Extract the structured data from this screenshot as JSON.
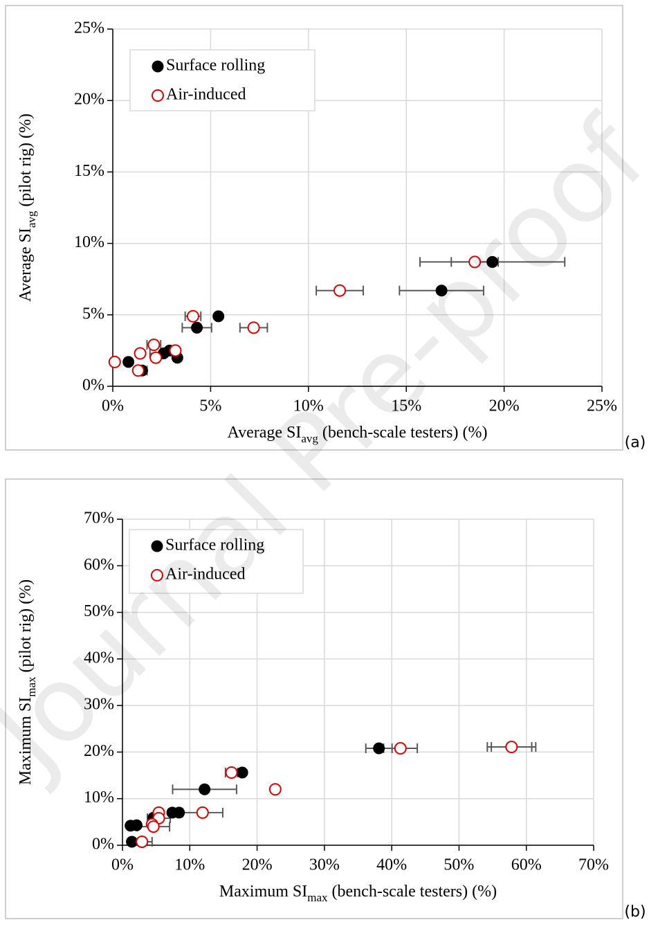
{
  "watermark": "Journal Pre-proof",
  "chart_data": [
    {
      "type": "scatter",
      "panel_label": "(a)",
      "xlabel": {
        "text": "Average SI",
        "sub": "avg",
        "rest": " (bench-scale testers) (%)"
      },
      "ylabel": {
        "text": "Average SI",
        "sub": "avg",
        "rest": " (pilot rig) (%)"
      },
      "xlim": [
        0,
        25
      ],
      "ylim": [
        0,
        25
      ],
      "xticks": [
        {
          "value": 0,
          "label": "0%"
        },
        {
          "value": 5,
          "label": "5%"
        },
        {
          "value": 10,
          "label": "10%"
        },
        {
          "value": 15,
          "label": "15%"
        },
        {
          "value": 20,
          "label": "20%"
        },
        {
          "value": 25,
          "label": "25%"
        }
      ],
      "yticks": [
        {
          "value": 0,
          "label": "0%"
        },
        {
          "value": 5,
          "label": "5%"
        },
        {
          "value": 10,
          "label": "10%"
        },
        {
          "value": 15,
          "label": "15%"
        },
        {
          "value": 20,
          "label": "20%"
        },
        {
          "value": 25,
          "label": "25%"
        }
      ],
      "grid": true,
      "legend": "upper left",
      "series": [
        {
          "name": "Surface rolling",
          "color": "#000000",
          "marker": "filled",
          "x": [
            19.4,
            16.8,
            5.4,
            4.3,
            2.9,
            2.6,
            3.3,
            0.8,
            1.5
          ],
          "values": [
            8.7,
            6.7,
            4.9,
            4.1,
            2.5,
            2.3,
            2.0,
            1.7,
            1.1
          ],
          "xerr": [
            3.7,
            2.15,
            null,
            0.75,
            null,
            0.7,
            null,
            null,
            0.25
          ]
        },
        {
          "name": "Air-induced",
          "color": "#e00000",
          "marker": "open",
          "x": [
            18.5,
            11.6,
            7.2,
            4.1,
            2.1,
            3.2,
            1.4,
            2.2,
            0.1,
            1.3
          ],
          "values": [
            8.7,
            6.7,
            4.1,
            4.9,
            2.9,
            2.5,
            2.3,
            2.0,
            1.7,
            1.1
          ],
          "xerr": [
            1.2,
            1.2,
            0.7,
            0.4,
            0.35,
            null,
            null,
            null,
            null,
            null
          ]
        }
      ]
    },
    {
      "type": "scatter",
      "panel_label": "(b)",
      "xlabel": {
        "text": "Maximum SI",
        "sub": "max",
        "rest": " (bench-scale testers) (%)"
      },
      "ylabel": {
        "text": "Maximum SI",
        "sub": "max",
        "rest": " (pilot rig) (%)"
      },
      "xlim": [
        0,
        70
      ],
      "ylim": [
        0,
        70
      ],
      "xticks": [
        {
          "value": 0,
          "label": "0%"
        },
        {
          "value": 10,
          "label": "10%"
        },
        {
          "value": 20,
          "label": "20%"
        },
        {
          "value": 30,
          "label": "30%"
        },
        {
          "value": 40,
          "label": "40%"
        },
        {
          "value": 50,
          "label": "50%"
        },
        {
          "value": 60,
          "label": "60%"
        },
        {
          "value": 70,
          "label": "70%"
        }
      ],
      "yticks": [
        {
          "value": 0,
          "label": "0%"
        },
        {
          "value": 10,
          "label": "10%"
        },
        {
          "value": 20,
          "label": "20%"
        },
        {
          "value": 30,
          "label": "30%"
        },
        {
          "value": 40,
          "label": "40%"
        },
        {
          "value": 50,
          "label": "50%"
        },
        {
          "value": 60,
          "label": "60%"
        },
        {
          "value": 70,
          "label": "70%"
        }
      ],
      "grid": true,
      "legend": "upper left",
      "series": [
        {
          "name": "Surface rolling",
          "color": "#000000",
          "marker": "filled",
          "x": [
            38.1,
            57.8,
            17.8,
            12.2,
            8.4,
            7.4,
            4.6,
            2.1,
            1.2,
            1.4
          ],
          "values": [
            20.8,
            21.1,
            15.6,
            12.0,
            7.0,
            7.0,
            5.9,
            4.3,
            4.2,
            0.75
          ],
          "xerr": [
            1.95,
            3.6,
            null,
            4.75,
            null,
            null,
            null,
            null,
            null,
            null
          ]
        },
        {
          "name": "Air-induced",
          "color": "#e00000",
          "marker": "open",
          "x": [
            41.3,
            57.8,
            16.2,
            22.7,
            11.9,
            5.4,
            5.4,
            4.4,
            4.6,
            2.9
          ],
          "values": [
            20.8,
            21.1,
            15.6,
            12.0,
            7.0,
            7.0,
            5.8,
            4.5,
            4.0,
            0.75
          ],
          "xerr": [
            2.5,
            3.0,
            0.9,
            null,
            3.0,
            null,
            1.7,
            null,
            2.4,
            1.5
          ]
        }
      ]
    }
  ]
}
